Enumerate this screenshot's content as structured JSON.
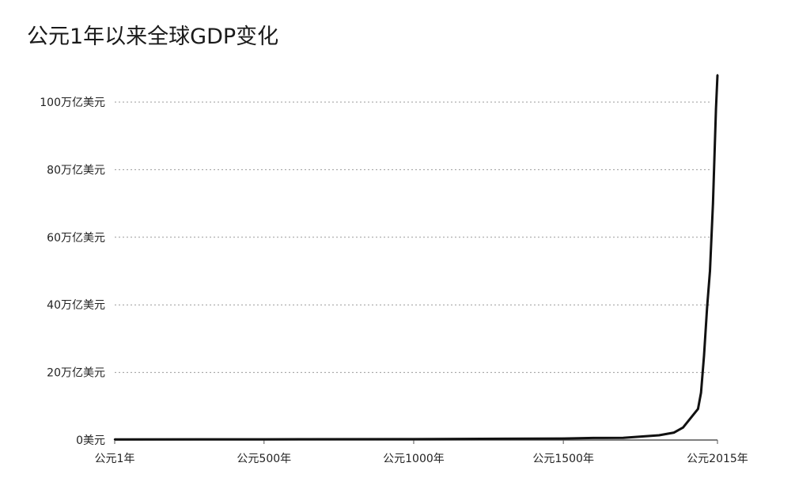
{
  "title": "公元1年以来全球GDP变化",
  "chart_data": {
    "type": "line",
    "title": "公元1年以来全球GDP变化",
    "xlabel": "",
    "ylabel": "",
    "x_ticks": [
      {
        "value": 1,
        "label": "公元1年"
      },
      {
        "value": 500,
        "label": "公元500年"
      },
      {
        "value": 1000,
        "label": "公元1000年"
      },
      {
        "value": 1500,
        "label": "公元1500年"
      },
      {
        "value": 2015,
        "label": "公元2015年"
      }
    ],
    "y_ticks": [
      {
        "value": 0,
        "label": "0美元"
      },
      {
        "value": 20,
        "label": "20万亿美元"
      },
      {
        "value": 40,
        "label": "40万亿美元"
      },
      {
        "value": 60,
        "label": "60万亿美元"
      },
      {
        "value": 80,
        "label": "80万亿美元"
      },
      {
        "value": 100,
        "label": "100万亿美元"
      }
    ],
    "xlim": [
      1,
      2015
    ],
    "ylim": [
      0,
      100
    ],
    "grid": "horizontal dotted",
    "line_color": "#111111",
    "series": [
      {
        "x": [
          1,
          500,
          1000,
          1500,
          1600,
          1700,
          1820,
          1870,
          1900,
          1950,
          1960,
          1970,
          1980,
          1990,
          2000,
          2010,
          2015
        ],
        "y": [
          0.18,
          0.2,
          0.25,
          0.45,
          0.6,
          0.65,
          1.4,
          2.2,
          3.7,
          9.2,
          14,
          25,
          39,
          50,
          70,
          98,
          108
        ]
      }
    ]
  }
}
